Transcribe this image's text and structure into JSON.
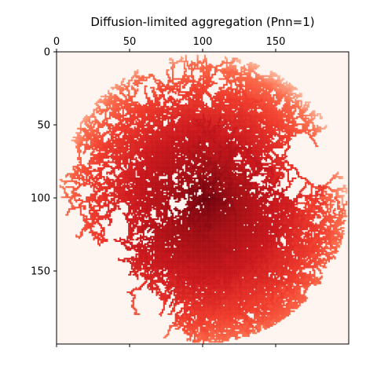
{
  "chart_data": {
    "type": "heatmap",
    "title": "Diffusion-limited aggregation (Pnn=1)",
    "xlabel": "",
    "ylabel": "",
    "grid_size": 200,
    "xlim": [
      0,
      200
    ],
    "ylim": [
      200,
      0
    ],
    "x_ticks": [
      0,
      50,
      100,
      150
    ],
    "x_tick_labels": [
      "0",
      "50",
      "100",
      "150"
    ],
    "y_ticks": [
      0,
      50,
      100,
      150
    ],
    "y_tick_labels": [
      "0",
      "50",
      "100",
      "150"
    ],
    "x_tick_position": "top",
    "colormap": "Reds",
    "background_color": "#fff5f0",
    "colors": {
      "low": "#fcbba1",
      "mid": "#ef3b2c",
      "high": "#67000d"
    },
    "seed_center": [
      100,
      100
    ],
    "cluster_radius": 99,
    "grid": false
  }
}
